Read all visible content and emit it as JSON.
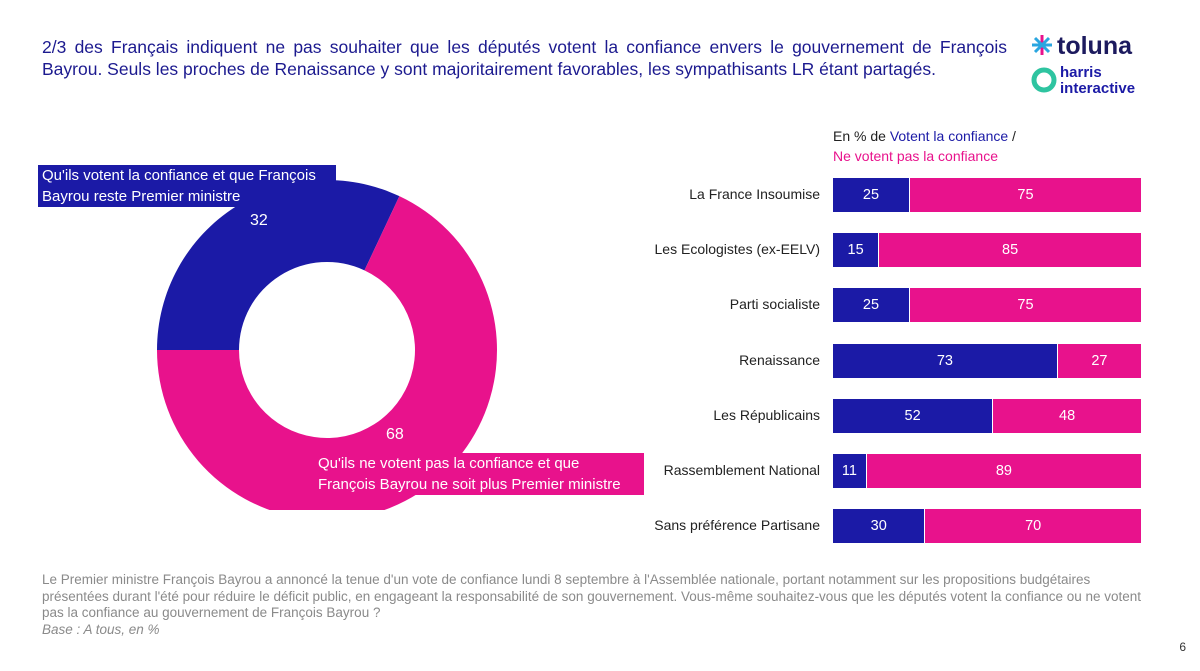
{
  "title": "2/3 des Français indiquent ne pas souhaiter que les députés votent la confiance envers le gouvernement de François Bayrou. Seuls les proches de Renaissance y sont majoritairement favorables, les sympathisants LR étant partagés.",
  "logo": {
    "toluna": "toluna",
    "harris": "harris",
    "interactive": "interactive"
  },
  "legend": {
    "prefix": "En % de ",
    "blue": "Votent la confiance",
    "sep": " /",
    "pink": "Ne votent pas la confiance"
  },
  "colors": {
    "blue": "#1b1aa6",
    "pink": "#e8128c"
  },
  "chart_data": [
    {
      "type": "pie",
      "donut": true,
      "labels": [
        "Qu'ils votent la confiance et que François Bayrou reste Premier ministre",
        "Qu'ils ne votent pas la confiance et que François Bayrou ne soit plus Premier ministre"
      ],
      "values": [
        32,
        68
      ],
      "colors": [
        "#1b1aa6",
        "#e8128c"
      ]
    },
    {
      "type": "bar",
      "orientation": "horizontal",
      "stacked": true,
      "categories": [
        "La France Insoumise",
        "Les Ecologistes (ex-EELV)",
        "Parti socialiste",
        "Renaissance",
        "Les Républicains",
        "Rassemblement National",
        "Sans préférence Partisane"
      ],
      "series": [
        {
          "name": "Votent la confiance",
          "values": [
            25,
            15,
            25,
            73,
            52,
            11,
            30
          ]
        },
        {
          "name": "Ne votent pas la confiance",
          "values": [
            75,
            85,
            75,
            27,
            48,
            89,
            70
          ]
        }
      ]
    }
  ],
  "note": "Le Premier ministre François Bayrou a annoncé la tenue d'un vote de confiance lundi 8 septembre à l'Assemblée nationale, portant notamment sur les propositions budgétaires présentées durant l'été pour réduire le déficit public, en engageant la responsabilité de son gouvernement. Vous-même souhaitez-vous que les députés votent la confiance ou ne votent pas la confiance au gouvernement de François Bayrou ?",
  "base": "Base : A tous, en %",
  "page": "6"
}
